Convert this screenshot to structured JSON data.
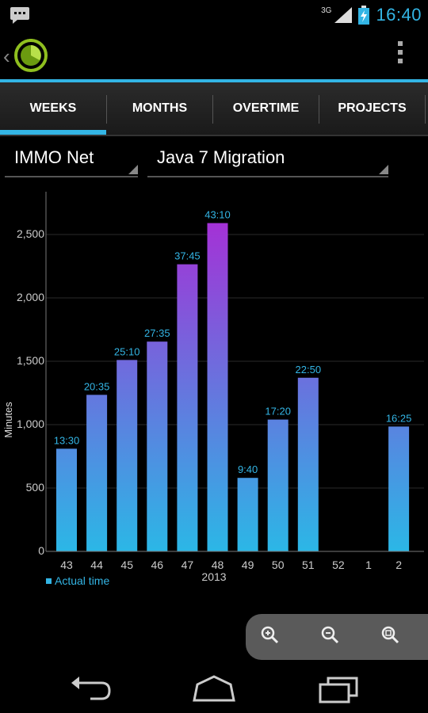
{
  "status": {
    "network": "3G",
    "time": "16:40"
  },
  "tabs": [
    {
      "label": "WEEKS"
    },
    {
      "label": "MONTHS"
    },
    {
      "label": "OVERTIME"
    },
    {
      "label": "PROJECTS"
    }
  ],
  "filters": {
    "customer": "IMMO Net",
    "project": "Java 7 Migration"
  },
  "colors": {
    "accent": "#33b5e5",
    "bar_bottom": "#2bb7e6",
    "bar_top": "#a431d6"
  },
  "chart_data": {
    "type": "bar",
    "categories": [
      "43",
      "44",
      "45",
      "46",
      "47",
      "48",
      "49",
      "50",
      "51",
      "52",
      "1",
      "2"
    ],
    "series": [
      {
        "name": "Actual time",
        "values": [
          810,
          1235,
          1510,
          1655,
          2265,
          2590,
          580,
          1040,
          1370,
          0,
          0,
          985
        ],
        "labels": [
          "13:30",
          "20:35",
          "25:10",
          "27:35",
          "37:45",
          "43:10",
          "9:40",
          "17:20",
          "22:50",
          "",
          "",
          "16:25"
        ]
      }
    ],
    "ylabel": "Minutes",
    "xlabel": "2013",
    "yticks": [
      "0",
      "500",
      "1,000",
      "1,500",
      "2,000",
      "2,500"
    ],
    "ylim": [
      0,
      2850
    ],
    "grid": true,
    "legend": "bottom-left"
  },
  "icons": {
    "status_left": "notification-chat-icon",
    "signal": "signal-icon",
    "battery": "battery-charging-icon",
    "logo": "stopwatch-logo-icon",
    "menu": "overflow-menu-icon",
    "zoom_in": "zoom-in-icon",
    "zoom_out": "zoom-out-icon",
    "zoom_reset": "zoom-reset-icon",
    "nav_back": "back-icon",
    "nav_home": "home-icon",
    "nav_recents": "recents-icon"
  }
}
